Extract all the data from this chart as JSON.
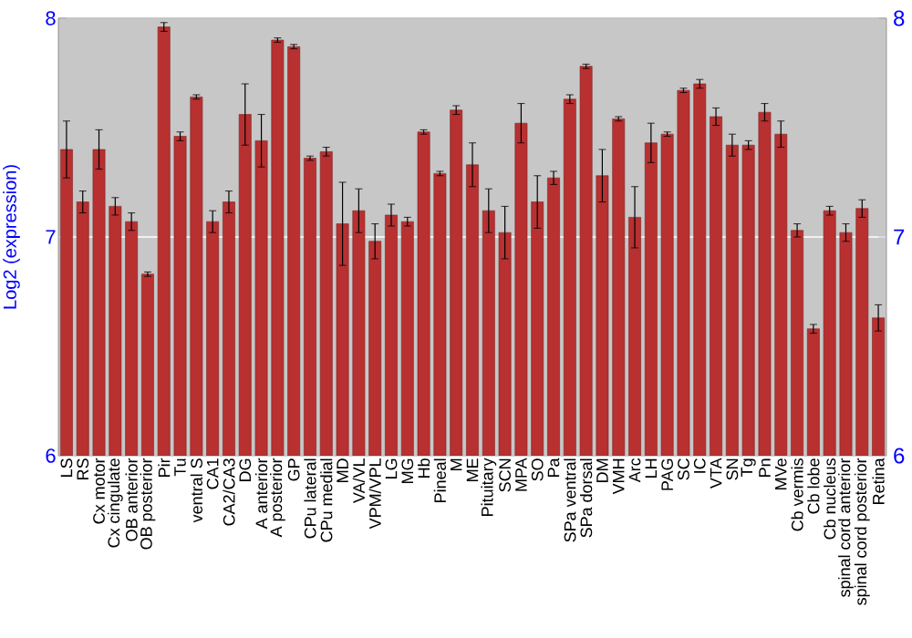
{
  "chart_data": {
    "type": "bar",
    "ylabel": "Log2 (expression)",
    "categories": [
      "LS",
      "RS",
      "Cx motor",
      "Cx cingulate",
      "OB anterior",
      "OB posterior",
      "Pir",
      "Tu",
      "ventral S",
      "CA1",
      "CA2/CA3",
      "DG",
      "A anterior",
      "A posterior",
      "GP",
      "CPu lateral",
      "CPu medial",
      "MD",
      "VA/VL",
      "VPM/VPL",
      "LG",
      "MG",
      "Hb",
      "Pineal",
      "M",
      "ME",
      "Pituitary",
      "SCN",
      "MPA",
      "SO",
      "Pa",
      "SPa ventral",
      "SPa dorsal",
      "DM",
      "VMH",
      "Arc",
      "LH",
      "PAG",
      "SC",
      "IC",
      "VTA",
      "SN",
      "Tg",
      "Pn",
      "MVe",
      "Cb vermis",
      "Cb lobe",
      "Cb nucleus",
      "spinal cord anterior",
      "spinal cord posterior",
      "Retina"
    ],
    "values": [
      7.4,
      7.16,
      7.4,
      7.14,
      7.07,
      6.83,
      7.96,
      7.46,
      7.64,
      7.07,
      7.16,
      7.56,
      7.44,
      7.9,
      7.87,
      7.36,
      7.39,
      7.06,
      7.12,
      6.98,
      7.1,
      7.07,
      7.48,
      7.29,
      7.58,
      7.33,
      7.12,
      7.02,
      7.52,
      7.16,
      7.27,
      7.63,
      7.78,
      7.28,
      7.54,
      7.09,
      7.43,
      7.47,
      7.67,
      7.7,
      7.55,
      7.42,
      7.42,
      7.57,
      7.47,
      7.03,
      6.58,
      7.12,
      7.02,
      7.13,
      6.63
    ],
    "errors": [
      0.13,
      0.05,
      0.09,
      0.04,
      0.04,
      0.01,
      0.02,
      0.02,
      0.01,
      0.05,
      0.05,
      0.14,
      0.12,
      0.01,
      0.01,
      0.01,
      0.02,
      0.19,
      0.1,
      0.08,
      0.05,
      0.02,
      0.01,
      0.01,
      0.02,
      0.1,
      0.1,
      0.12,
      0.09,
      0.12,
      0.03,
      0.02,
      0.01,
      0.12,
      0.01,
      0.14,
      0.09,
      0.01,
      0.01,
      0.02,
      0.04,
      0.05,
      0.02,
      0.04,
      0.06,
      0.03,
      0.02,
      0.02,
      0.04,
      0.04,
      0.06
    ],
    "color": "#b83030",
    "ylim": [
      6,
      8
    ],
    "yticks": [
      6,
      7,
      8
    ],
    "y2lim": [
      6,
      8
    ],
    "y2ticks": [
      6,
      7,
      8
    ],
    "grid": "y"
  }
}
